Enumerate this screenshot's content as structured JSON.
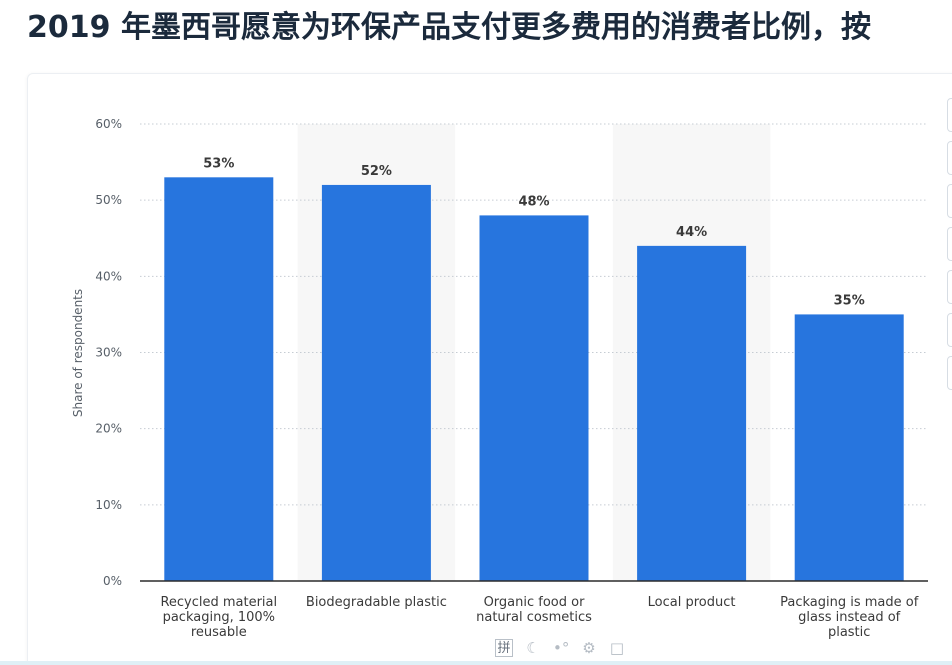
{
  "page": {
    "top_fragment": "",
    "title": "2019 年墨西哥愿意为环保产品支付更多费用的消费者比例，按"
  },
  "ime_toolbar": {
    "mode_label": "拼",
    "icons": [
      "ime-half-moon-icon",
      "ime-punctuation-icon",
      "ime-settings-icon",
      "ime-skin-icon"
    ]
  },
  "colors": {
    "bar": "#2775de",
    "band": "#f7f7f7",
    "grid": "#c6ccd3",
    "axis": "#2b2b2b",
    "tick_text": "#575f68",
    "label_text": "#3a3a3a"
  },
  "chart_data": {
    "type": "bar",
    "title": "",
    "xlabel": "",
    "ylabel": "Share of respondents",
    "ylim": [
      0,
      60
    ],
    "yticks": [
      0,
      10,
      20,
      30,
      40,
      50,
      60
    ],
    "ytick_labels": [
      "0%",
      "10%",
      "20%",
      "30%",
      "40%",
      "50%",
      "60%"
    ],
    "grid": true,
    "categories": [
      [
        "Recycled material",
        "packaging, 100%",
        "reusable"
      ],
      [
        "Biodegradable plastic"
      ],
      [
        "Organic food or",
        "natural cosmetics"
      ],
      [
        "Local product"
      ],
      [
        "Packaging is made of",
        "glass instead of",
        "plastic"
      ]
    ],
    "values": [
      53,
      52,
      48,
      44,
      35
    ],
    "value_labels": [
      "53%",
      "52%",
      "48%",
      "44%",
      "35%"
    ]
  }
}
